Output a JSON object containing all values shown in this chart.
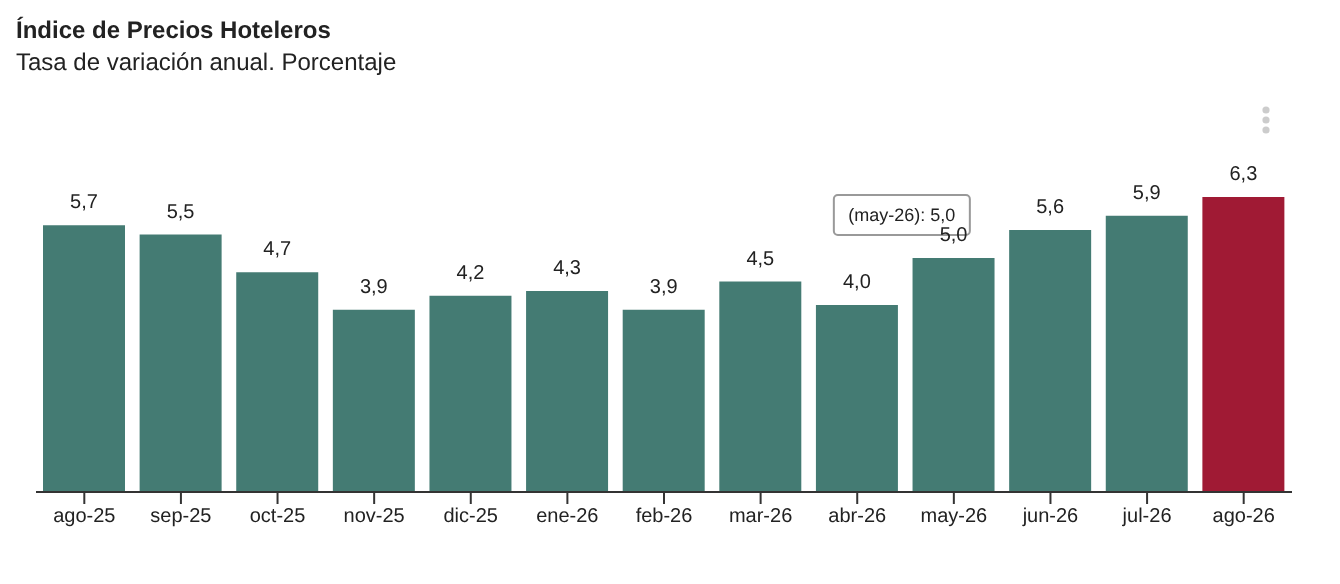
{
  "chart_data": {
    "type": "bar",
    "title": "Índice de Precios Hoteleros",
    "subtitle": "Tasa de variación anual. Porcentaje",
    "categories": [
      "ago-25",
      "sep-25",
      "oct-25",
      "nov-25",
      "dic-25",
      "ene-26",
      "feb-26",
      "mar-26",
      "abr-26",
      "may-26",
      "jun-26",
      "jul-26",
      "ago-26"
    ],
    "values": [
      5.7,
      5.5,
      4.7,
      3.9,
      4.2,
      4.3,
      3.9,
      4.5,
      4.0,
      5.0,
      5.6,
      5.9,
      6.3
    ],
    "colors": [
      "#447b73",
      "#447b73",
      "#447b73",
      "#447b73",
      "#447b73",
      "#447b73",
      "#447b73",
      "#447b73",
      "#447b73",
      "#447b73",
      "#447b73",
      "#447b73",
      "#a01a34"
    ],
    "value_labels": [
      "5,7",
      "5,5",
      "4,7",
      "3,9",
      "4,2",
      "4,3",
      "3,9",
      "4,5",
      "4,0",
      "5,0",
      "5,6",
      "5,9",
      "6,3"
    ],
    "annotations": [
      {
        "text": "(may-26): 5,0",
        "x": "may-26",
        "y": 5.0
      }
    ]
  }
}
